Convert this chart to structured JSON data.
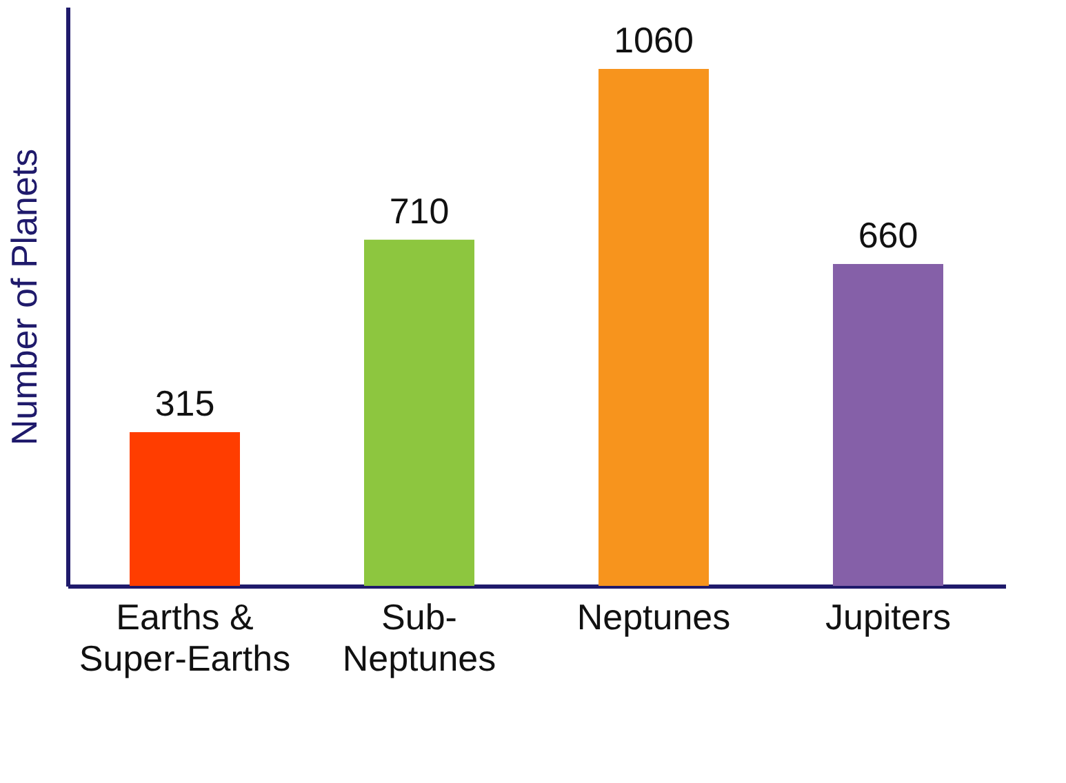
{
  "chart_data": {
    "type": "bar",
    "ylabel": "Number of Planets",
    "categories": [
      "Earths & Super-Earths",
      "Sub-Neptunes",
      "Neptunes",
      "Jupiters"
    ],
    "values": [
      315,
      710,
      1060,
      660
    ],
    "colors": [
      "#ff3d00",
      "#8dc63f",
      "#f7941d",
      "#8560a8"
    ],
    "data_labels": true,
    "tick_labels": "x",
    "grid": false
  }
}
